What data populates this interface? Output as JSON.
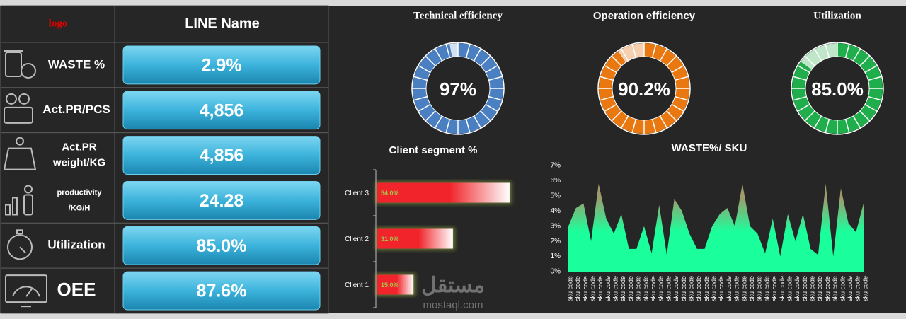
{
  "kpi_table": {
    "header": {
      "logo": "logo",
      "line_name": "LINE Name"
    },
    "rows": [
      {
        "label": [
          "WASTE %"
        ],
        "value": "2.9%"
      },
      {
        "label": [
          "Act.PR/PCS"
        ],
        "value": "4,856"
      },
      {
        "label": [
          "Act.PR",
          "weight/KG"
        ],
        "value": "4,856"
      },
      {
        "label": [
          "productivity",
          "/KG/H"
        ],
        "value": "24.28"
      },
      {
        "label": [
          "Utilization"
        ],
        "value": "85.0%"
      },
      {
        "label": [
          "OEE"
        ],
        "value": "87.6%"
      }
    ]
  },
  "chart_data": [
    {
      "type": "donut",
      "title": "Technical efficiency",
      "values": [
        97
      ],
      "value_labels": [
        "97%"
      ],
      "ylim": [
        0,
        100
      ],
      "color": "#4a7fc1",
      "rest_color": "#d3e0f1"
    },
    {
      "type": "donut",
      "title": "Operation efficiency",
      "values": [
        90.2
      ],
      "value_labels": [
        "90.2%"
      ],
      "ylim": [
        0,
        100
      ],
      "color": "#e8780f",
      "rest_color": "#f6cfae"
    },
    {
      "type": "donut",
      "title": "Utilization",
      "values": [
        85
      ],
      "value_labels": [
        "85.0%"
      ],
      "ylim": [
        0,
        100
      ],
      "color": "#1fae4b",
      "rest_color": "#bfe6c9"
    },
    {
      "type": "hbar",
      "title": "Client segment %",
      "categories": [
        "Client 3",
        "Client 2",
        "Client 1"
      ],
      "values": [
        54,
        31,
        15
      ],
      "value_labels": [
        "54.0%",
        "31.0%",
        "15.0%"
      ],
      "color": "#f0242a"
    },
    {
      "type": "area",
      "title": "WASTE%/ SKU",
      "categories": [
        "sku code",
        "sku code",
        "sku code",
        "sku code",
        "sku code",
        "sku code",
        "sku code",
        "sku code",
        "sku code",
        "sku code",
        "sku code",
        "sku code",
        "sku code",
        "sku code",
        "sku code",
        "sku code",
        "sku code",
        "sku code",
        "sku code",
        "sku code",
        "sku code",
        "sku code",
        "sku code",
        "sku code",
        "sku code",
        "sku code",
        "sku code",
        "sku code",
        "sku code",
        "sku code",
        "sku code",
        "sku code",
        "sku code",
        "sku code",
        "sku code",
        "sku code",
        "sku code",
        "sku code",
        "sku code",
        "sku code"
      ],
      "values": [
        3,
        4.2,
        4.5,
        2,
        5.8,
        3.5,
        2.5,
        3.8,
        1.5,
        1.5,
        3,
        1.2,
        4.4,
        1.1,
        4.8,
        4,
        2.5,
        1.5,
        1.5,
        3,
        3.8,
        4.2,
        3,
        5.8,
        3,
        2.5,
        1.2,
        3.5,
        1,
        3.8,
        2,
        3.8,
        1.5,
        1.1,
        5.8,
        1,
        5.5,
        3.2,
        2.6,
        4.5
      ],
      "ylim": [
        0,
        7
      ],
      "yticks": [
        {
          "value": 0,
          "label": "0%"
        },
        {
          "value": 1,
          "label": "1%"
        },
        {
          "value": 2,
          "label": "2%"
        },
        {
          "value": 3,
          "label": "3%"
        },
        {
          "value": 4,
          "label": "4%"
        },
        {
          "value": 5,
          "label": "5%"
        },
        {
          "value": 6,
          "label": "6%"
        },
        {
          "value": 7,
          "label": "7%"
        }
      ],
      "color": "#1aff9c"
    }
  ],
  "watermark": {
    "brand": "مستقل",
    "site": "mostaql.com"
  }
}
